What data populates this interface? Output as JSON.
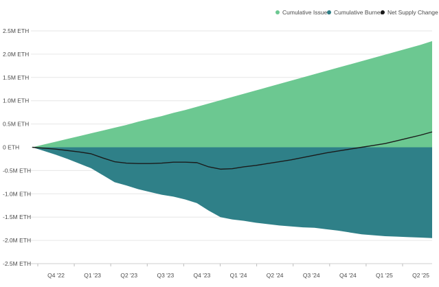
{
  "chart_data": {
    "type": "area",
    "title": "",
    "xlabel": "",
    "ylabel": "",
    "ylim": [
      -2.5,
      2.5
    ],
    "y_unit": "M ETH",
    "grid": "horizontal",
    "legend_position": "top-right",
    "y_ticks": [
      {
        "value": 2.5,
        "label": "2.5M ETH"
      },
      {
        "value": 2.0,
        "label": "2.0M ETH"
      },
      {
        "value": 1.5,
        "label": "1.5M ETH"
      },
      {
        "value": 1.0,
        "label": "1.0M ETH"
      },
      {
        "value": 0.5,
        "label": "0.5M ETH"
      },
      {
        "value": 0.0,
        "label": "0 ETH"
      },
      {
        "value": -0.5,
        "label": "-0.5M ETH"
      },
      {
        "value": -1.0,
        "label": "-1.0M ETH"
      },
      {
        "value": -1.5,
        "label": "-1.5M ETH"
      },
      {
        "value": -2.0,
        "label": "-2.0M ETH"
      },
      {
        "value": -2.5,
        "label": "-2.5M ETH"
      }
    ],
    "x_ticks": [
      "Q4 '22",
      "Q1 '23",
      "Q2 '23",
      "Q3 '23",
      "Q4 '23",
      "Q1 '24",
      "Q2 '24",
      "Q3 '24",
      "Q4 '24",
      "Q1 '25",
      "Q2 '25"
    ],
    "x": [
      "Sep '22",
      "Oct '22",
      "Nov '22",
      "Dec '22",
      "Jan '23",
      "Feb '23",
      "Mar '23",
      "Apr '23",
      "May '23",
      "Jun '23",
      "Jul '23",
      "Aug '23",
      "Sep '23",
      "Oct '23",
      "Nov '23",
      "Dec '23",
      "Jan '24",
      "Feb '24",
      "Mar '24",
      "Apr '24",
      "May '24",
      "Jun '24",
      "Jul '24",
      "Aug '24",
      "Sep '24",
      "Oct '24",
      "Nov '24",
      "Dec '24",
      "Jan '25",
      "Feb '25",
      "Mar '25",
      "Apr '25",
      "May '25",
      "Jun '25",
      "Jul '25"
    ],
    "series": [
      {
        "name": "Cumulative Issued",
        "color": "#6cc891",
        "kind": "area",
        "values": [
          0.0,
          0.06,
          0.12,
          0.18,
          0.24,
          0.3,
          0.36,
          0.42,
          0.48,
          0.55,
          0.61,
          0.67,
          0.74,
          0.8,
          0.87,
          0.94,
          1.01,
          1.08,
          1.15,
          1.22,
          1.29,
          1.36,
          1.43,
          1.5,
          1.57,
          1.64,
          1.71,
          1.78,
          1.85,
          1.92,
          1.99,
          2.06,
          2.13,
          2.2,
          2.28
        ]
      },
      {
        "name": "Cumulative Burned",
        "color": "#2f8088",
        "kind": "area",
        "values": [
          0.0,
          -0.08,
          -0.16,
          -0.25,
          -0.35,
          -0.45,
          -0.6,
          -0.75,
          -0.82,
          -0.9,
          -0.96,
          -1.02,
          -1.06,
          -1.12,
          -1.2,
          -1.36,
          -1.5,
          -1.55,
          -1.58,
          -1.62,
          -1.65,
          -1.68,
          -1.7,
          -1.72,
          -1.73,
          -1.76,
          -1.79,
          -1.83,
          -1.87,
          -1.89,
          -1.91,
          -1.92,
          -1.93,
          -1.94,
          -1.95
        ]
      },
      {
        "name": "Net Supply Change",
        "color": "#1a1a1a",
        "kind": "line",
        "values": [
          0.0,
          -0.02,
          -0.04,
          -0.07,
          -0.1,
          -0.14,
          -0.23,
          -0.31,
          -0.34,
          -0.35,
          -0.35,
          -0.34,
          -0.32,
          -0.32,
          -0.33,
          -0.42,
          -0.47,
          -0.46,
          -0.42,
          -0.39,
          -0.35,
          -0.31,
          -0.27,
          -0.22,
          -0.17,
          -0.12,
          -0.08,
          -0.04,
          0.0,
          0.04,
          0.08,
          0.14,
          0.2,
          0.26,
          0.33
        ]
      }
    ]
  }
}
